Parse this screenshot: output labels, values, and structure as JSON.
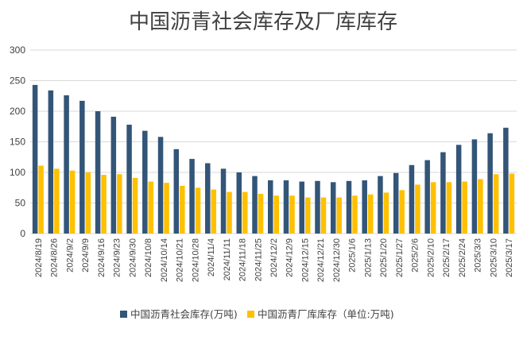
{
  "chart_data": {
    "type": "bar",
    "title": "中国沥青社会库存及厂库库存",
    "xlabel": "",
    "ylabel": "",
    "ylim": [
      0,
      300
    ],
    "yticks": [
      0,
      50,
      100,
      150,
      200,
      250,
      300
    ],
    "grid": true,
    "legend_position": "bottom",
    "categories": [
      "2024/8/19",
      "2024/8/26",
      "2024/9/2",
      "2024/9/9",
      "2024/9/16",
      "2024/9/23",
      "2024/9/30",
      "2024/10/8",
      "2024/10/14",
      "2024/10/21",
      "2024/10/28",
      "2024/11/4",
      "2024/11/11",
      "2024/11/18",
      "2024/11/25",
      "2024/12/2",
      "2024/12/9",
      "2024/12/15",
      "2024/12/21",
      "2024/12/30",
      "2025/1/6",
      "2025/1/13",
      "2025/1/20",
      "2025/1/27",
      "2025/2/6",
      "2025/2/10",
      "2025/2/17",
      "2025/2/24",
      "2025/3/3",
      "2025/3/10",
      "2025/3/17"
    ],
    "series": [
      {
        "name": "中国沥青社会库存(万吨)",
        "color": "#335577",
        "values": [
          243,
          234,
          226,
          217,
          200,
          191,
          178,
          168,
          158,
          138,
          122,
          115,
          106,
          100,
          94,
          87,
          87,
          85,
          86,
          84,
          86,
          87,
          94,
          99,
          112,
          120,
          133,
          145,
          154,
          164,
          173
        ]
      },
      {
        "name": "中国沥青厂库库存（单位:万吨)",
        "color": "#FFC000",
        "values": [
          111,
          106,
          103,
          100,
          96,
          97,
          91,
          85,
          83,
          78,
          75,
          72,
          68,
          68,
          65,
          62,
          62,
          59,
          59,
          59,
          62,
          64,
          67,
          71,
          80,
          84,
          84,
          85,
          89,
          97,
          98
        ]
      }
    ]
  }
}
